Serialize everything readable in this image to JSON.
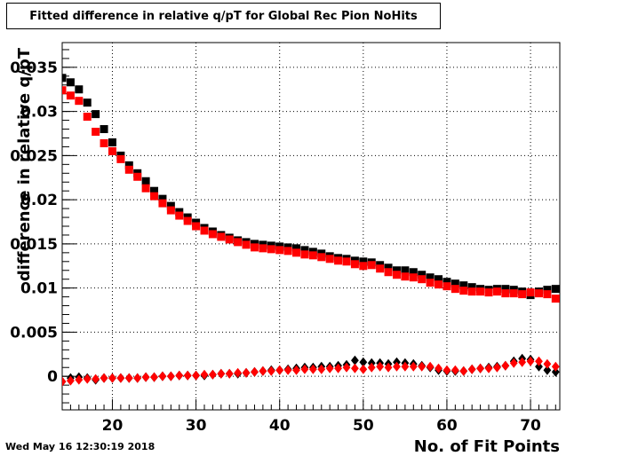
{
  "timestamp": "Wed May 16 12:30:19 2018",
  "chart_data": {
    "type": "scatter",
    "title": "Fitted difference in relative q/pT for Global Rec Pion NoHits",
    "xlabel": "No. of Fit Points",
    "ylabel": "difference in relative q/pT",
    "xlim": [
      14,
      73.5
    ],
    "ylim": [
      -0.0038,
      0.0378
    ],
    "grid": true,
    "x_ticks": [
      20,
      30,
      40,
      50,
      60,
      70
    ],
    "x_tick_labels": [
      "20",
      "30",
      "40",
      "50",
      "60",
      "70"
    ],
    "y_ticks": [
      0,
      0.005,
      0.01,
      0.015,
      0.02,
      0.025,
      0.03,
      0.035
    ],
    "y_tick_labels": [
      "0",
      "0.005",
      "0.01",
      "0.015",
      "0.02",
      "0.025",
      "0.03",
      "0.035"
    ],
    "x": [
      14,
      15,
      16,
      17,
      18,
      19,
      20,
      21,
      22,
      23,
      24,
      25,
      26,
      27,
      28,
      29,
      30,
      31,
      32,
      33,
      34,
      35,
      36,
      37,
      38,
      39,
      40,
      41,
      42,
      43,
      44,
      45,
      46,
      47,
      48,
      49,
      50,
      51,
      52,
      53,
      54,
      55,
      56,
      57,
      58,
      59,
      60,
      61,
      62,
      63,
      64,
      65,
      66,
      67,
      68,
      69,
      70,
      71,
      72,
      73
    ],
    "series": [
      {
        "marker": "square",
        "color": "#000000",
        "values": [
          0.0338,
          0.0333,
          0.0325,
          0.031,
          0.0297,
          0.028,
          0.0265,
          0.025,
          0.0239,
          0.023,
          0.0221,
          0.021,
          0.0201,
          0.0193,
          0.0186,
          0.018,
          0.0174,
          0.0168,
          0.0164,
          0.016,
          0.0157,
          0.0154,
          0.0152,
          0.015,
          0.0149,
          0.0148,
          0.0147,
          0.0146,
          0.0145,
          0.0143,
          0.0141,
          0.0139,
          0.0136,
          0.0134,
          0.0133,
          0.0131,
          0.013,
          0.0129,
          0.0126,
          0.0123,
          0.012,
          0.012,
          0.0118,
          0.0115,
          0.0112,
          0.011,
          0.0107,
          0.0105,
          0.0103,
          0.0101,
          0.0099,
          0.0098,
          0.0099,
          0.0099,
          0.0098,
          0.0096,
          0.0092,
          0.0096,
          0.0098,
          0.0099
        ]
      },
      {
        "marker": "square",
        "color": "#ff0000",
        "values": [
          0.0324,
          0.0318,
          0.0312,
          0.0294,
          0.0277,
          0.0264,
          0.0255,
          0.0246,
          0.0234,
          0.0226,
          0.0213,
          0.0204,
          0.0196,
          0.0188,
          0.0182,
          0.0176,
          0.017,
          0.0165,
          0.0161,
          0.0158,
          0.0155,
          0.0152,
          0.0149,
          0.0146,
          0.0145,
          0.0144,
          0.0143,
          0.0142,
          0.014,
          0.0138,
          0.0137,
          0.0135,
          0.0133,
          0.0131,
          0.013,
          0.0127,
          0.0125,
          0.0126,
          0.0122,
          0.0118,
          0.0115,
          0.0113,
          0.0112,
          0.011,
          0.0106,
          0.0104,
          0.0102,
          0.0099,
          0.0097,
          0.0096,
          0.0096,
          0.0095,
          0.0096,
          0.0094,
          0.0094,
          0.0093,
          0.0095,
          0.0094,
          0.0093,
          0.0088
        ]
      },
      {
        "marker": "diamond",
        "color": "#000000",
        "values": [
          -0.0006,
          -0.0002,
          -0.0001,
          -0.0002,
          -0.0004,
          -0.0002,
          -0.0002,
          -0.0002,
          -0.0002,
          -0.0002,
          -0.0001,
          -0.0001,
          0.0,
          0.0,
          0.0001,
          0.0001,
          0.0001,
          0.0001,
          0.0002,
          0.0003,
          0.0003,
          0.0003,
          0.0004,
          0.0005,
          0.0006,
          0.0007,
          0.0007,
          0.0008,
          0.0009,
          0.001,
          0.001,
          0.0011,
          0.0011,
          0.0012,
          0.0013,
          0.0018,
          0.0016,
          0.0015,
          0.0015,
          0.0014,
          0.0016,
          0.0015,
          0.0014,
          0.0012,
          0.001,
          0.0007,
          0.0006,
          0.0006,
          0.0006,
          0.0008,
          0.0009,
          0.001,
          0.0011,
          0.0012,
          0.0017,
          0.002,
          0.0019,
          0.0011,
          0.0007,
          0.0005
        ]
      },
      {
        "marker": "diamond",
        "color": "#ff0000",
        "values": [
          -0.0006,
          -0.0005,
          -0.0004,
          -0.0003,
          -0.0003,
          -0.0002,
          -0.0002,
          -0.0002,
          -0.0002,
          -0.0002,
          -0.0001,
          -0.0001,
          0.0,
          0.0,
          0.0001,
          0.0001,
          0.0001,
          0.0002,
          0.0002,
          0.0003,
          0.0003,
          0.0004,
          0.0004,
          0.0005,
          0.0006,
          0.0006,
          0.0007,
          0.0007,
          0.0007,
          0.0008,
          0.0008,
          0.0008,
          0.0009,
          0.0009,
          0.001,
          0.0009,
          0.0008,
          0.001,
          0.0011,
          0.001,
          0.0011,
          0.0011,
          0.0011,
          0.0011,
          0.0011,
          0.0009,
          0.0007,
          0.0007,
          0.0006,
          0.0008,
          0.0009,
          0.0009,
          0.001,
          0.0012,
          0.0015,
          0.0016,
          0.0017,
          0.0017,
          0.0014,
          0.0011
        ]
      }
    ]
  }
}
